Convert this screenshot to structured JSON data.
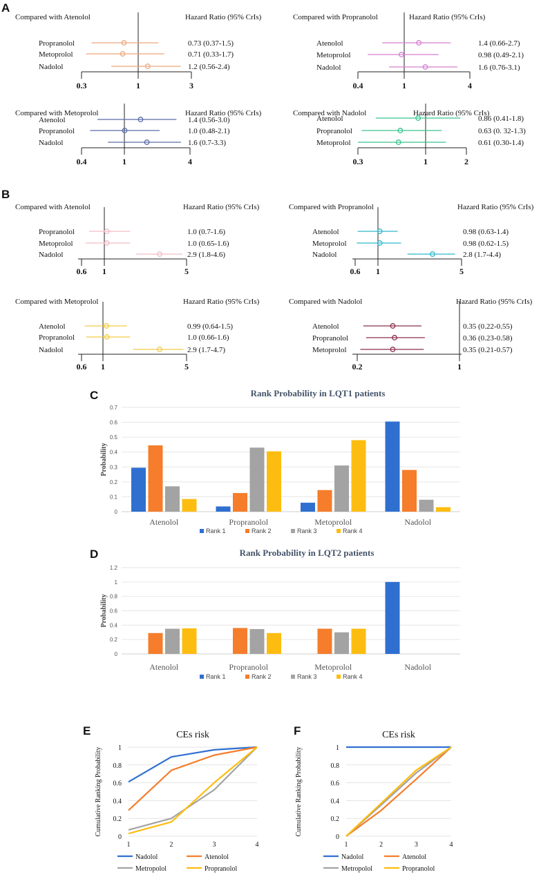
{
  "panel_labels": {
    "a": "A",
    "b": "B",
    "c": "C",
    "d": "D",
    "e": "E",
    "f": "F"
  },
  "chart_data": [
    {
      "type": "forest",
      "panel": "A",
      "title": "Compared with Atenolol",
      "header": "Hazard Ratio (95% CrIs)",
      "color": "#e9a87b",
      "rows": [
        {
          "label": "Propranolol",
          "hr": 0.73,
          "lo": 0.37,
          "hi": 1.5,
          "text": "0.73 (0.37-1.5)"
        },
        {
          "label": "Metoprolol",
          "hr": 0.71,
          "lo": 0.33,
          "hi": 1.7,
          "text": "0.71 (0.33-1.7)"
        },
        {
          "label": "Nadolol",
          "hr": 1.2,
          "lo": 0.56,
          "hi": 2.4,
          "text": "1.2 (0.56-2.4)"
        }
      ],
      "ticks": [
        0.3,
        1,
        3
      ],
      "tick_labels": [
        "0.3",
        "1",
        "3"
      ]
    },
    {
      "type": "forest",
      "panel": "A",
      "title": "Compared with Propranolol",
      "header": "Hazard Ratio (95% CrIs)",
      "color": "#d57fcf",
      "rows": [
        {
          "label": "Atenolol",
          "hr": 1.4,
          "lo": 0.66,
          "hi": 2.7,
          "text": "1.4 (0.66-2.7)"
        },
        {
          "label": "Metoprolol",
          "hr": 0.98,
          "lo": 0.49,
          "hi": 2.1,
          "text": "0.98 (0.49-2.1)"
        },
        {
          "label": "Nadolol",
          "hr": 1.6,
          "lo": 0.76,
          "hi": 3.1,
          "text": "1.6 (0.76-3.1)"
        }
      ],
      "ticks": [
        0.4,
        1,
        4
      ],
      "tick_labels": [
        "0.4",
        "1",
        "4"
      ]
    },
    {
      "type": "forest",
      "panel": "A",
      "title": "Compared with Metoprolol",
      "header": "Hazard Ratio (95% CrIs)",
      "color": "#5a6ba8",
      "rows": [
        {
          "label": "Atenolol",
          "hr": 1.4,
          "lo": 0.56,
          "hi": 3.0,
          "text": "1.4 (0.56-3.0)"
        },
        {
          "label": "Propranolol",
          "hr": 1.0,
          "lo": 0.48,
          "hi": 2.1,
          "text": "1.0 (0.48-2.1)"
        },
        {
          "label": "Nadolol",
          "hr": 1.6,
          "lo": 0.7,
          "hi": 3.3,
          "text": "1.6 (0.7-3.3)"
        }
      ],
      "ticks": [
        0.4,
        1,
        4
      ],
      "tick_labels": [
        "0.4",
        "1",
        "4"
      ]
    },
    {
      "type": "forest",
      "panel": "A",
      "title": "Compared with Nadolol",
      "header": "Hazard Ratio (95% CrIs)",
      "color": "#37c48e",
      "rows": [
        {
          "label": "Atenolol",
          "hr": 0.86,
          "lo": 0.41,
          "hi": 1.8,
          "text": "0.86 (0.41-1.8)"
        },
        {
          "label": "Propranolol",
          "hr": 0.63,
          "lo": 0.32,
          "hi": 1.3,
          "text": "0.63 (0. 32-1.3)"
        },
        {
          "label": "Metoprolol",
          "hr": 0.61,
          "lo": 0.3,
          "hi": 1.4,
          "text": "0.61 (0.30-1.4)"
        }
      ],
      "ticks": [
        0.3,
        1,
        2
      ],
      "tick_labels": [
        "0.3",
        "1",
        "2"
      ]
    },
    {
      "type": "forest",
      "panel": "B",
      "title": "Compared with Atenolol",
      "header": "Hazard Ratio (95% CrIs)",
      "color": "#f2bcc4",
      "rows": [
        {
          "label": "Propranolol",
          "hr": 1.0,
          "lo": 0.7,
          "hi": 1.6,
          "text": "1.0 (0.7-1.6)"
        },
        {
          "label": "Metoprolol",
          "hr": 1.0,
          "lo": 0.65,
          "hi": 1.6,
          "text": "1.0 (0.65-1.6)"
        },
        {
          "label": "Nadolol",
          "hr": 2.9,
          "lo": 1.8,
          "hi": 4.6,
          "text": "2.9 (1.8-4.6)"
        }
      ],
      "ticks": [
        0.6,
        1,
        5
      ],
      "tick_labels": [
        "0.6",
        "1",
        "5"
      ]
    },
    {
      "type": "forest",
      "panel": "B",
      "title": "Compared with Propranolol",
      "header": "Hazard Ratio (95% CrIs)",
      "color": "#2eb8cc",
      "rows": [
        {
          "label": "Atenolol",
          "hr": 0.98,
          "lo": 0.63,
          "hi": 1.4,
          "text": "0.98 (0.63-1.4)"
        },
        {
          "label": "Metoprolol",
          "hr": 0.98,
          "lo": 0.62,
          "hi": 1.5,
          "text": "0.98 (0.62-1.5)"
        },
        {
          "label": "Nadolol",
          "hr": 2.8,
          "lo": 1.7,
          "hi": 4.4,
          "text": "2.8 (1.7-4.4)"
        }
      ],
      "ticks": [
        0.6,
        1,
        5
      ],
      "tick_labels": [
        "0.6",
        "1",
        "5"
      ]
    },
    {
      "type": "forest",
      "panel": "B",
      "title": "Compared with Metoprolol",
      "header": "Hazard Ratio (95% CrIs)",
      "color": "#f2cb43",
      "rows": [
        {
          "label": "Atenolol",
          "hr": 0.99,
          "lo": 0.64,
          "hi": 1.5,
          "text": "0.99 (0.64-1.5)"
        },
        {
          "label": "Propranolol",
          "hr": 1.0,
          "lo": 0.66,
          "hi": 1.6,
          "text": "1.0 (0.66-1.6)"
        },
        {
          "label": "Nadolol",
          "hr": 2.9,
          "lo": 1.7,
          "hi": 4.7,
          "text": "2.9 (1.7-4.7)"
        }
      ],
      "ticks": [
        0.6,
        1,
        5
      ],
      "tick_labels": [
        "0.6",
        "1",
        "5"
      ]
    },
    {
      "type": "forest",
      "panel": "B",
      "title": "Compared with Nadolol",
      "header": "Hazard Ratio (95% CrIs)",
      "color": "#8b2f4a",
      "rows": [
        {
          "label": "Atenolol",
          "hr": 0.35,
          "lo": 0.22,
          "hi": 0.55,
          "text": "0.35 (0.22-0.55)"
        },
        {
          "label": "Propranolol",
          "hr": 0.36,
          "lo": 0.23,
          "hi": 0.58,
          "text": "0.36 (0.23-0.58)"
        },
        {
          "label": "Metoprolol",
          "hr": 0.35,
          "lo": 0.21,
          "hi": 0.57,
          "text": "0.35 (0.21-0.57)"
        }
      ],
      "ticks": [
        0.2,
        1
      ],
      "tick_labels": [
        "0.2",
        "1"
      ]
    },
    {
      "type": "bar",
      "panel": "C",
      "title": "Rank Probability in LQT1 patients",
      "ylabel": "Probability",
      "xlabel": "",
      "categories": [
        "Atenolol",
        "Propranolol",
        "Metoprolol",
        "Nadolol"
      ],
      "ylim": [
        0,
        0.7
      ],
      "yticks": [
        "0",
        "0.1",
        "0.2",
        "0.3",
        "0.4",
        "0.5",
        "0.6",
        "0.7"
      ],
      "series": [
        {
          "name": "Rank 1",
          "color": "#2f6fd0",
          "values": [
            0.295,
            0.035,
            0.06,
            0.605
          ]
        },
        {
          "name": "Rank 2",
          "color": "#f57d2b",
          "values": [
            0.445,
            0.125,
            0.145,
            0.28
          ]
        },
        {
          "name": "Rank 3",
          "color": "#a3a3a3",
          "values": [
            0.17,
            0.43,
            0.31,
            0.08
          ]
        },
        {
          "name": "Rank 4",
          "color": "#fdbd10",
          "values": [
            0.085,
            0.405,
            0.48,
            0.03
          ]
        }
      ]
    },
    {
      "type": "bar",
      "panel": "D",
      "title": "Rank Probability in LQT2 patients",
      "ylabel": "Probability",
      "xlabel": "",
      "categories": [
        "Atenolol",
        "Propranolol",
        "Metoprolol",
        "Nadolol"
      ],
      "ylim": [
        0,
        1.2
      ],
      "yticks": [
        "0",
        "0.2",
        "0.4",
        "0.6",
        "0.8",
        "1",
        "1.2"
      ],
      "series": [
        {
          "name": "Rank 1",
          "color": "#2f6fd0",
          "values": [
            0,
            0,
            0,
            1.0
          ]
        },
        {
          "name": "Rank 2",
          "color": "#f57d2b",
          "values": [
            0.29,
            0.36,
            0.35,
            0
          ]
        },
        {
          "name": "Rank 3",
          "color": "#a3a3a3",
          "values": [
            0.35,
            0.345,
            0.3,
            0
          ]
        },
        {
          "name": "Rank 4",
          "color": "#fdbd10",
          "values": [
            0.355,
            0.29,
            0.35,
            0
          ]
        }
      ]
    },
    {
      "type": "line",
      "panel": "E",
      "title": "CEs risk",
      "ylabel": "Cumulative Ranking Probability",
      "xlabel": "",
      "x": [
        1,
        2,
        3,
        4
      ],
      "xticks": [
        "1",
        "2",
        "3",
        "4"
      ],
      "ylim": [
        0,
        1
      ],
      "yticks": [
        "0",
        "0.2",
        "0.4",
        "0.6",
        "0.8",
        "1"
      ],
      "series": [
        {
          "name": "Nadolol",
          "color": "#2f6fd0",
          "values": [
            0.61,
            0.89,
            0.97,
            1.0
          ]
        },
        {
          "name": "Atenolol",
          "color": "#f57d2b",
          "values": [
            0.29,
            0.74,
            0.91,
            1.0
          ]
        },
        {
          "name": "Metropolol",
          "color": "#a3a3a3",
          "values": [
            0.07,
            0.2,
            0.52,
            1.0
          ]
        },
        {
          "name": "Propranolol",
          "color": "#fdbd10",
          "values": [
            0.03,
            0.16,
            0.6,
            1.0
          ]
        }
      ]
    },
    {
      "type": "line",
      "panel": "F",
      "title": "CEs risk",
      "ylabel": "Cumulative Ranking Probability",
      "xlabel": "",
      "x": [
        1,
        2,
        3,
        4
      ],
      "xticks": [
        "1",
        "2",
        "3",
        "4"
      ],
      "ylim": [
        0,
        1
      ],
      "yticks": [
        "0",
        "0.2",
        "0.4",
        "0.6",
        "0.8",
        "1"
      ],
      "series": [
        {
          "name": "Nadolol",
          "color": "#2f6fd0",
          "values": [
            1.0,
            1.0,
            1.0,
            1.0
          ]
        },
        {
          "name": "Atenolol",
          "color": "#f57d2b",
          "values": [
            0.0,
            0.29,
            0.64,
            1.0
          ]
        },
        {
          "name": "Metropolol",
          "color": "#a3a3a3",
          "values": [
            0.0,
            0.35,
            0.71,
            1.0
          ]
        },
        {
          "name": "Propranolol",
          "color": "#fdbd10",
          "values": [
            0.0,
            0.37,
            0.74,
            1.0
          ]
        }
      ]
    }
  ]
}
